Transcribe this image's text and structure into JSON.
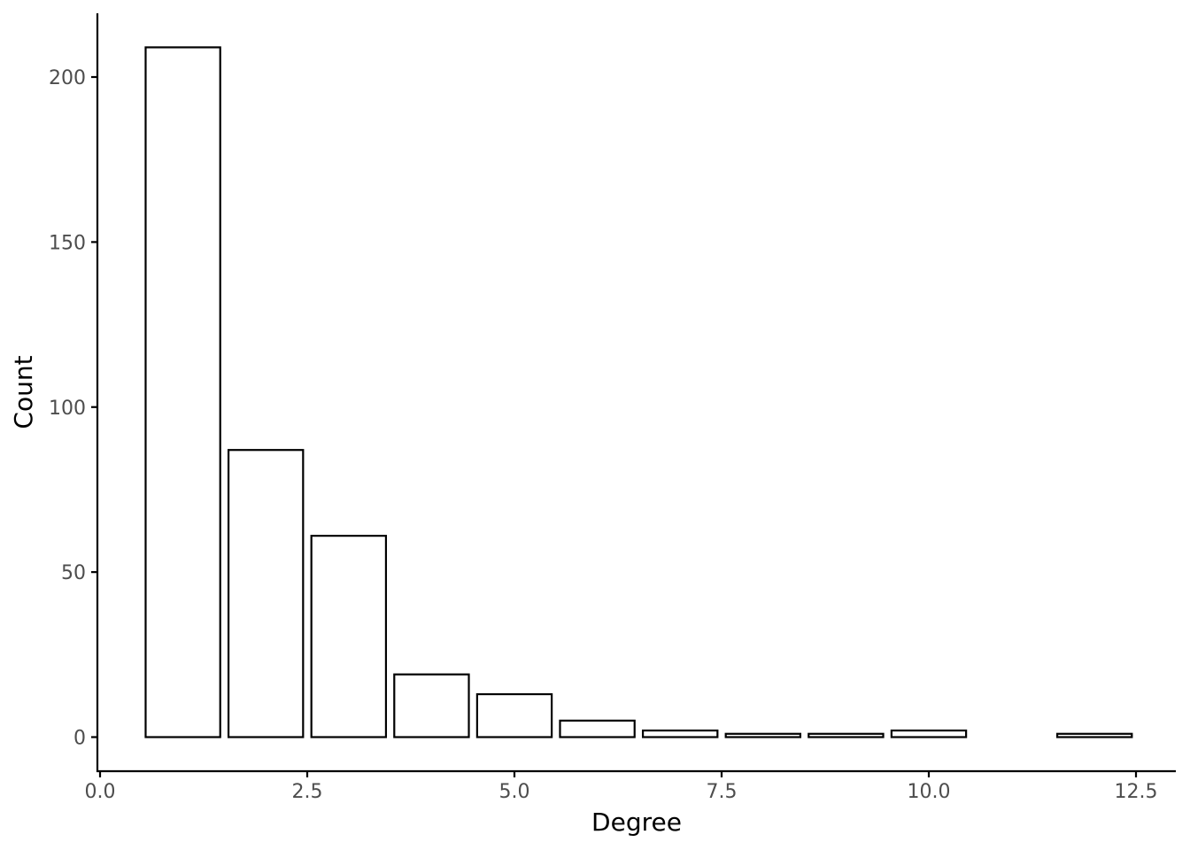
{
  "chart_data": {
    "type": "bar",
    "title": "",
    "xlabel": "Degree",
    "ylabel": "Count",
    "x": [
      1,
      2,
      3,
      4,
      5,
      6,
      7,
      8,
      9,
      10,
      12
    ],
    "values": [
      209,
      87,
      61,
      19,
      13,
      5,
      2,
      1,
      1,
      2,
      1
    ],
    "bar_width": 0.9,
    "xlim": [
      0,
      13
    ],
    "ylim": [
      -10,
      219
    ],
    "xticks": [
      0,
      2.5,
      5,
      7.5,
      10,
      12.5
    ],
    "xtick_labels": [
      "0.0",
      "2.5",
      "5.0",
      "7.5",
      "10.0",
      "12.5"
    ],
    "yticks": [
      0,
      50,
      100,
      150,
      200
    ],
    "ytick_labels": [
      "0",
      "50",
      "100",
      "150",
      "200"
    ],
    "grid": false,
    "legend": "none",
    "colors": {
      "bar_fill": "#ffffff",
      "bar_stroke": "#000000",
      "axis": "#000000",
      "tick_label": "#4d4d4d"
    }
  }
}
